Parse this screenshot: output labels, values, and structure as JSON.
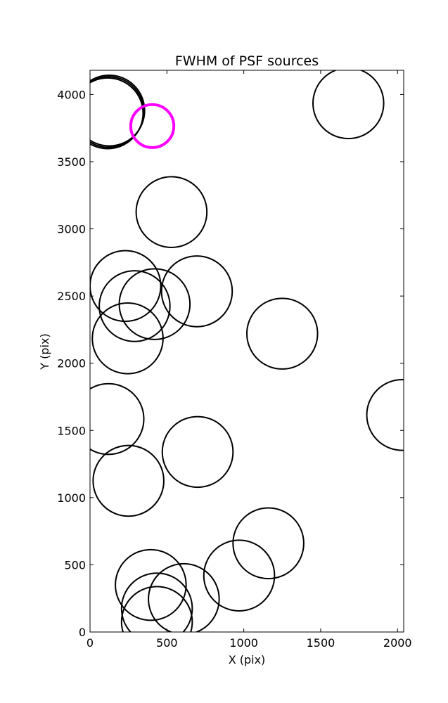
{
  "chart_data": {
    "type": "scatter",
    "title": "FWHM of PSF sources",
    "xlabel": "X (pix)",
    "ylabel": "Y (pix)",
    "xlim": [
      0,
      2040
    ],
    "ylim": [
      0,
      4180
    ],
    "xticks": [
      0,
      500,
      1000,
      1500,
      2000
    ],
    "yticks": [
      0,
      500,
      1000,
      1500,
      2000,
      2500,
      3000,
      3500,
      4000
    ],
    "grid": false,
    "legend": "none",
    "colors": {
      "default": "#000000",
      "highlight": "#ff00ff"
    },
    "radius": 230,
    "highlight": {
      "x": 405,
      "y": 3765,
      "radius": 140
    },
    "points": [
      {
        "x": 120,
        "y": 3870
      },
      {
        "x": 125,
        "y": 3880
      },
      {
        "x": 115,
        "y": 3860
      },
      {
        "x": 1680,
        "y": 3935
      },
      {
        "x": 530,
        "y": 3125
      },
      {
        "x": 230,
        "y": 2575
      },
      {
        "x": 420,
        "y": 2440
      },
      {
        "x": 695,
        "y": 2535
      },
      {
        "x": 290,
        "y": 2425
      },
      {
        "x": 245,
        "y": 2185
      },
      {
        "x": 1250,
        "y": 2220
      },
      {
        "x": 120,
        "y": 1585
      },
      {
        "x": 2030,
        "y": 1615
      },
      {
        "x": 700,
        "y": 1340
      },
      {
        "x": 250,
        "y": 1125
      },
      {
        "x": 1160,
        "y": 660
      },
      {
        "x": 970,
        "y": 420
      },
      {
        "x": 395,
        "y": 350
      },
      {
        "x": 610,
        "y": 245
      },
      {
        "x": 435,
        "y": 175
      },
      {
        "x": 435,
        "y": 75
      }
    ]
  }
}
